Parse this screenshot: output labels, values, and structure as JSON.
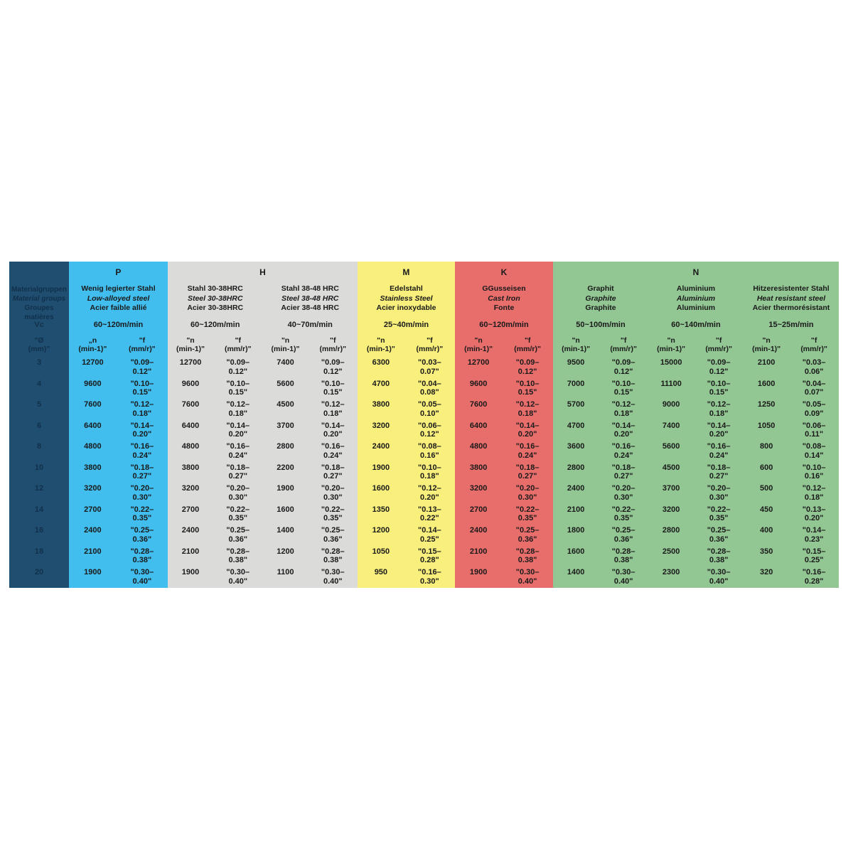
{
  "table": {
    "row_header": {
      "color": "#1f4e70",
      "text_color": "#11304b",
      "title_line1": "Materialgruppen",
      "title_line2": "Material groups",
      "title_line3": "Groupes matières",
      "vc_label": "Vc",
      "diameter_label": "\"Ø\n(mm)\"",
      "diameters": [
        "3",
        "4",
        "5",
        "6",
        "8",
        "10",
        "12",
        "14",
        "16",
        "18",
        "20"
      ]
    },
    "groups": [
      {
        "letter": "P",
        "color": "#41bdee",
        "subs": [
          {
            "name_line1": "Wenig legierter Stahl",
            "name_line2": "Low-alloyed steel",
            "name_line3": "Acier faible allié",
            "vc": "60~120m/min",
            "n_label": "„n\n(min-1)\"",
            "f_label": "\"f\n(mm/r)\"",
            "rows": [
              {
                "n": "12700",
                "f": "\"0.09–\n0.12\""
              },
              {
                "n": "9600",
                "f": "\"0.10–\n0.15\""
              },
              {
                "n": "7600",
                "f": "\"0.12–\n0.18\""
              },
              {
                "n": "6400",
                "f": "\"0.14–\n0.20\""
              },
              {
                "n": "4800",
                "f": "\"0.16–\n0.24\""
              },
              {
                "n": "3800",
                "f": "\"0.18–\n0.27\""
              },
              {
                "n": "3200",
                "f": "\"0.20–\n0.30\""
              },
              {
                "n": "2700",
                "f": "\"0.22–\n0.35\""
              },
              {
                "n": "2400",
                "f": "\"0.25–\n0.36\""
              },
              {
                "n": "2100",
                "f": "\"0.28–\n0.38\""
              },
              {
                "n": "1900",
                "f": "\"0.30–\n0.40\""
              }
            ]
          }
        ]
      },
      {
        "letter": "H",
        "color": "#dbdbda",
        "subs": [
          {
            "name_line1": "Stahl 30-38HRC",
            "name_line2": "Steel 30-38HRC",
            "name_line3": "Acier 30-38HRC",
            "vc": "60~120m/min",
            "n_label": "\"n\n(min-1)\"",
            "f_label": "\"f\n(mm/r)\"",
            "rows": [
              {
                "n": "12700",
                "f": "\"0.09–\n0.12\""
              },
              {
                "n": "9600",
                "f": "\"0.10–\n0.15\""
              },
              {
                "n": "7600",
                "f": "\"0.12–\n0.18\""
              },
              {
                "n": "6400",
                "f": "\"0.14–\n0.20\""
              },
              {
                "n": "4800",
                "f": "\"0.16–\n0.24\""
              },
              {
                "n": "3800",
                "f": "\"0.18–\n0.27\""
              },
              {
                "n": "3200",
                "f": "\"0.20–\n0.30\""
              },
              {
                "n": "2700",
                "f": "\"0.22–\n0.35\""
              },
              {
                "n": "2400",
                "f": "\"0.25–\n0.36\""
              },
              {
                "n": "2100",
                "f": "\"0.28–\n0.38\""
              },
              {
                "n": "1900",
                "f": "\"0.30–\n0.40\""
              }
            ]
          },
          {
            "name_line1": "Stahl 38-48 HRC",
            "name_line2": "Steel 38-48 HRC",
            "name_line3": "Acier 38-48 HRC",
            "vc": "40~70m/min",
            "n_label": "\"n\n(min-1)\"",
            "f_label": "\"f\n(mm/r)\"",
            "rows": [
              {
                "n": "7400",
                "f": "\"0.09–\n0.12\""
              },
              {
                "n": "5600",
                "f": "\"0.10–\n0.15\""
              },
              {
                "n": "4500",
                "f": "\"0.12–\n0.18\""
              },
              {
                "n": "3700",
                "f": "\"0.14–\n0.20\""
              },
              {
                "n": "2800",
                "f": "\"0.16–\n0.24\""
              },
              {
                "n": "2200",
                "f": "\"0.18–\n0.27\""
              },
              {
                "n": "1900",
                "f": "\"0.20–\n0.30\""
              },
              {
                "n": "1600",
                "f": "\"0.22–\n0.35\""
              },
              {
                "n": "1400",
                "f": "\"0.25–\n0.36\""
              },
              {
                "n": "1200",
                "f": "\"0.28–\n0.38\""
              },
              {
                "n": "1100",
                "f": "\"0.30–\n0.40\""
              }
            ]
          }
        ]
      },
      {
        "letter": "M",
        "color": "#f8ef7d",
        "subs": [
          {
            "name_line1": "Edelstahl",
            "name_line2": "Stainless Steel",
            "name_line3": "Acier inoxydable",
            "vc": "25~40m/min",
            "n_label": "\"n\n(min-1)\"",
            "f_label": "\"f\n(mm/r)\"",
            "rows": [
              {
                "n": "6300",
                "f": "\"0.03–\n0.07\""
              },
              {
                "n": "4700",
                "f": "\"0.04–\n0.08\""
              },
              {
                "n": "3800",
                "f": "\"0.05–\n0.10\""
              },
              {
                "n": "3200",
                "f": "\"0.06–\n0.12\""
              },
              {
                "n": "2400",
                "f": "\"0.08–\n0.16\""
              },
              {
                "n": "1900",
                "f": "\"0.10–\n0.18\""
              },
              {
                "n": "1600",
                "f": "\"0.12–\n0.20\""
              },
              {
                "n": "1350",
                "f": "\"0.13–\n0.22\""
              },
              {
                "n": "1200",
                "f": "\"0.14–\n0.25\""
              },
              {
                "n": "1050",
                "f": "\"0.15–\n0.28\""
              },
              {
                "n": "950",
                "f": "\"0.16–\n0.30\""
              }
            ]
          }
        ]
      },
      {
        "letter": "K",
        "color": "#e86e6c",
        "subs": [
          {
            "name_line1": "GGusseisen",
            "name_line2": "Cast Iron",
            "name_line3": "Fonte",
            "vc": "60~120m/min",
            "n_label": "\"n\n(min-1)\"",
            "f_label": "\"f\n(mm/r)\"",
            "rows": [
              {
                "n": "12700",
                "f": "\"0.09–\n0.12\""
              },
              {
                "n": "9600",
                "f": "\"0.10–\n0.15\""
              },
              {
                "n": "7600",
                "f": "\"0.12–\n0.18\""
              },
              {
                "n": "6400",
                "f": "\"0.14–\n0.20\""
              },
              {
                "n": "4800",
                "f": "\"0.16–\n0.24\""
              },
              {
                "n": "3800",
                "f": "\"0.18–\n0.27\""
              },
              {
                "n": "3200",
                "f": "\"0.20–\n0.30\""
              },
              {
                "n": "2700",
                "f": "\"0.22–\n0.35\""
              },
              {
                "n": "2400",
                "f": "\"0.25–\n0.36\""
              },
              {
                "n": "2100",
                "f": "\"0.28–\n0.38\""
              },
              {
                "n": "1900",
                "f": "\"0.30–\n0.40\""
              }
            ]
          }
        ]
      },
      {
        "letter": "N",
        "color": "#92c693",
        "subs": [
          {
            "name_line1": "Graphit",
            "name_line2": "Graphite",
            "name_line3": "Graphite",
            "vc": "50~100m/min",
            "n_label": "\"n\n(min-1)\"",
            "f_label": "\"f\n(mm/r)\"",
            "rows": [
              {
                "n": "9500",
                "f": "\"0.09–\n0.12\""
              },
              {
                "n": "7000",
                "f": "\"0.10–\n0.15\""
              },
              {
                "n": "5700",
                "f": "\"0.12–\n0.18\""
              },
              {
                "n": "4700",
                "f": "\"0.14–\n0.20\""
              },
              {
                "n": "3600",
                "f": "\"0.16–\n0.24\""
              },
              {
                "n": "2800",
                "f": "\"0.18–\n0.27\""
              },
              {
                "n": "2400",
                "f": "\"0.20–\n0.30\""
              },
              {
                "n": "2100",
                "f": "\"0.22–\n0.35\""
              },
              {
                "n": "1800",
                "f": "\"0.25–\n0.36\""
              },
              {
                "n": "1600",
                "f": "\"0.28–\n0.38\""
              },
              {
                "n": "1400",
                "f": "\"0.30–\n0.40\""
              }
            ]
          },
          {
            "name_line1": "Aluminium",
            "name_line2": "Aluminium",
            "name_line3": "Aluminium",
            "vc": "60~140m/min",
            "n_label": "\"n\n(min-1)\"",
            "f_label": "\"f\n(mm/r)\"",
            "rows": [
              {
                "n": "15000",
                "f": "\"0.09–\n0.12\""
              },
              {
                "n": "11100",
                "f": "\"0.10–\n0.15\""
              },
              {
                "n": "9000",
                "f": "\"0.12–\n0.18\""
              },
              {
                "n": "7400",
                "f": "\"0.14–\n0.20\""
              },
              {
                "n": "5600",
                "f": "\"0.16–\n0.24\""
              },
              {
                "n": "4500",
                "f": "\"0.18–\n0.27\""
              },
              {
                "n": "3700",
                "f": "\"0.20–\n0.30\""
              },
              {
                "n": "3200",
                "f": "\"0.22–\n0.35\""
              },
              {
                "n": "2800",
                "f": "\"0.25–\n0.36\""
              },
              {
                "n": "2500",
                "f": "\"0.28–\n0.38\""
              },
              {
                "n": "2300",
                "f": "\"0.30–\n0.40\""
              }
            ]
          },
          {
            "name_line1": "Hitzeresistenter Stahl",
            "name_line2": "Heat resistant steel",
            "name_line3": "Acier thermorésistant",
            "vc": "15~25m/min",
            "n_label": "\"n\n(min-1)\"",
            "f_label": "\"f\n(mm/r)\"",
            "rows": [
              {
                "n": "2100",
                "f": "\"0.03–\n0.06\""
              },
              {
                "n": "1600",
                "f": "\"0.04–\n0.07\""
              },
              {
                "n": "1250",
                "f": "\"0.05–\n0.09\""
              },
              {
                "n": "1050",
                "f": "\"0.06–\n0.11\""
              },
              {
                "n": "800",
                "f": "\"0.08–\n0.14\""
              },
              {
                "n": "600",
                "f": "\"0.10–\n0.16\""
              },
              {
                "n": "500",
                "f": "\"0.12–\n0.18\""
              },
              {
                "n": "450",
                "f": "\"0.13–\n0.20\""
              },
              {
                "n": "400",
                "f": "\"0.14–\n0.23\""
              },
              {
                "n": "350",
                "f": "\"0.15–\n0.25\""
              },
              {
                "n": "320",
                "f": "\"0.16–\n0.28\""
              }
            ]
          }
        ]
      }
    ]
  }
}
